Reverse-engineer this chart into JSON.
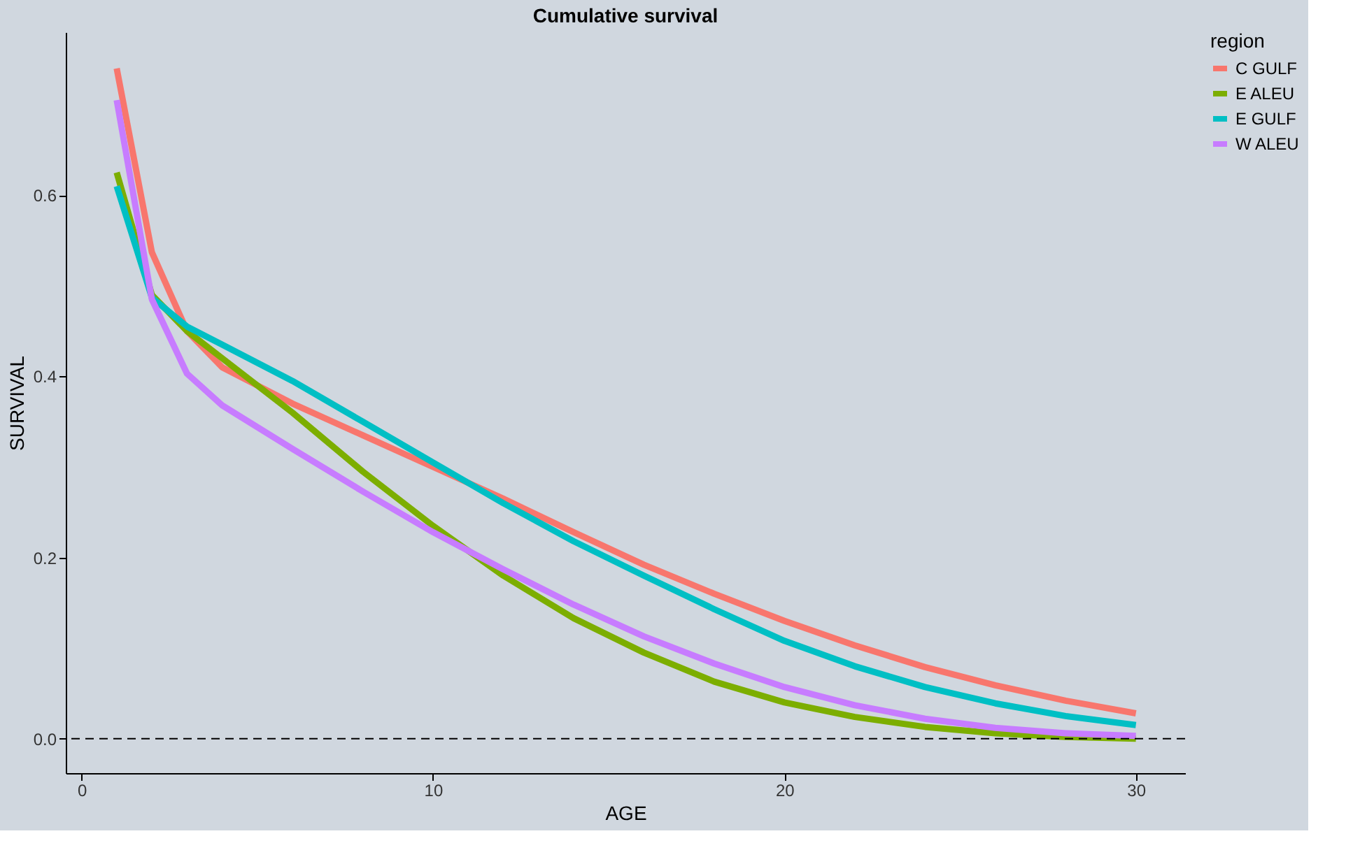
{
  "chart_data": {
    "type": "line",
    "title": "Cumulative survival",
    "xlabel": "AGE",
    "ylabel": "SURVIVAL",
    "legend_title": "region",
    "x": [
      1,
      2,
      3,
      4,
      6,
      8,
      10,
      12,
      14,
      16,
      18,
      20,
      22,
      24,
      26,
      28,
      30
    ],
    "series": [
      {
        "name": "C GULF",
        "color": "#f8766d",
        "values": [
          0.74,
          0.537,
          0.45,
          0.41,
          0.37,
          0.335,
          0.3,
          0.265,
          0.228,
          0.192,
          0.16,
          0.13,
          0.103,
          0.079,
          0.059,
          0.042,
          0.028
        ]
      },
      {
        "name": "E ALEU",
        "color": "#7cae00",
        "values": [
          0.625,
          0.49,
          0.45,
          0.42,
          0.36,
          0.295,
          0.235,
          0.18,
          0.133,
          0.095,
          0.063,
          0.04,
          0.024,
          0.013,
          0.006,
          0.002,
          0.0
        ]
      },
      {
        "name": "E GULF",
        "color": "#00bfc4",
        "values": [
          0.61,
          0.487,
          0.455,
          0.435,
          0.395,
          0.35,
          0.305,
          0.26,
          0.218,
          0.18,
          0.143,
          0.108,
          0.08,
          0.057,
          0.039,
          0.025,
          0.015
        ]
      },
      {
        "name": "W ALEU",
        "color": "#c77cff",
        "values": [
          0.705,
          0.485,
          0.403,
          0.368,
          0.32,
          0.273,
          0.228,
          0.187,
          0.148,
          0.113,
          0.083,
          0.057,
          0.037,
          0.022,
          0.012,
          0.006,
          0.003
        ]
      }
    ],
    "xlim": [
      -0.45,
      31.4
    ],
    "ylim": [
      -0.038,
      0.78
    ],
    "xticks": [
      0,
      10,
      20,
      30
    ],
    "yticks": [
      {
        "value": 0,
        "label": "0.0"
      },
      0.2,
      0.4,
      0.6
    ],
    "ref_lines": [
      {
        "axis": "y",
        "value": 0,
        "line_style": "dashed",
        "color": "#000000"
      }
    ],
    "grid": false,
    "legend": "right",
    "marker": "none",
    "line_style": "solid"
  }
}
